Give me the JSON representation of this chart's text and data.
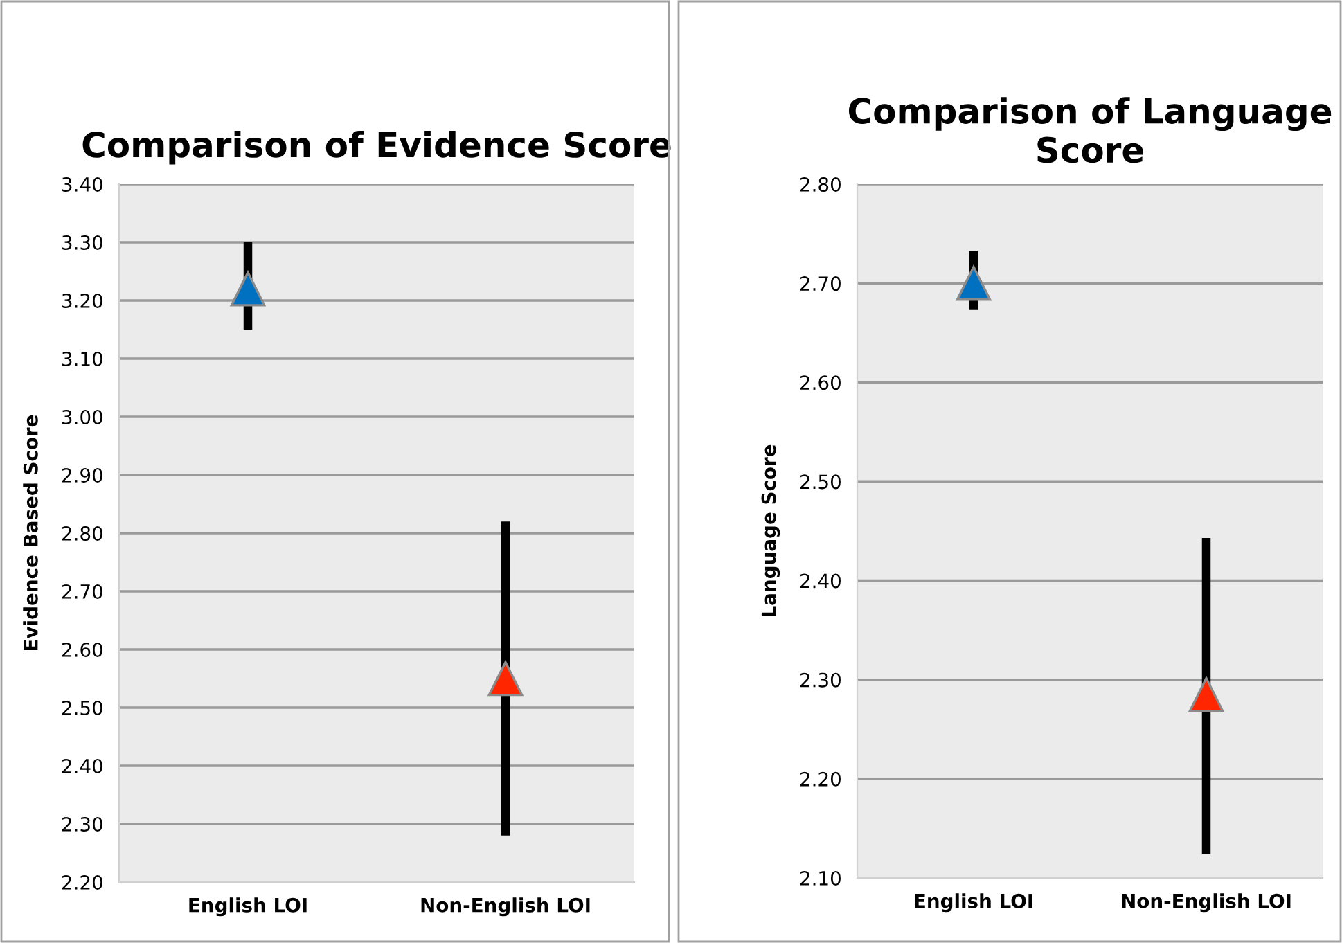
{
  "chart_data": [
    {
      "type": "scatter",
      "title": "Comparison of Evidence Score",
      "ylabel": "Evidence Based Score",
      "categories": [
        "English LOI",
        "Non-English LOI"
      ],
      "values": [
        3.22,
        2.55
      ],
      "colors": [
        "#0070c0",
        "#ff2600"
      ],
      "errors": [
        [
          3.15,
          3.3
        ],
        [
          2.28,
          2.82
        ]
      ],
      "marker": "triangle",
      "ylim": [
        2.2,
        3.4
      ],
      "yticks": [
        {
          "value": 2.2,
          "label": "2.20"
        },
        {
          "value": 2.3,
          "label": "2.30"
        },
        {
          "value": 2.4,
          "label": "2.40"
        },
        {
          "value": 2.5,
          "label": "2.50"
        },
        {
          "value": 2.6,
          "label": "2.60"
        },
        {
          "value": 2.7,
          "label": "2.70"
        },
        {
          "value": 2.8,
          "label": "2.80"
        },
        {
          "value": 2.9,
          "label": "2.90"
        },
        {
          "value": 3.0,
          "label": "3.00"
        },
        {
          "value": 3.1,
          "label": "3.10"
        },
        {
          "value": 3.2,
          "label": "3.20"
        },
        {
          "value": 3.3,
          "label": "3.30"
        },
        {
          "value": 3.4,
          "label": "3.40"
        }
      ],
      "grid": "y",
      "legend": false
    },
    {
      "type": "scatter",
      "title": "Comparison of Language Score",
      "ylabel": "Language Score",
      "categories": [
        "English LOI",
        "Non-English LOI"
      ],
      "values": [
        2.7,
        2.285
      ],
      "colors": [
        "#0070c0",
        "#ff2600"
      ],
      "errors": [
        [
          2.673,
          2.733
        ],
        [
          2.124,
          2.443
        ]
      ],
      "marker": "triangle",
      "ylim": [
        2.1,
        2.8
      ],
      "yticks": [
        {
          "value": 2.1,
          "label": "2.10"
        },
        {
          "value": 2.2,
          "label": "2.20"
        },
        {
          "value": 2.3,
          "label": "2.30"
        },
        {
          "value": 2.4,
          "label": "2.40"
        },
        {
          "value": 2.5,
          "label": "2.50"
        },
        {
          "value": 2.6,
          "label": "2.60"
        },
        {
          "value": 2.7,
          "label": "2.70"
        },
        {
          "value": 2.8,
          "label": "2.80"
        }
      ],
      "grid": "y",
      "legend": false
    }
  ]
}
